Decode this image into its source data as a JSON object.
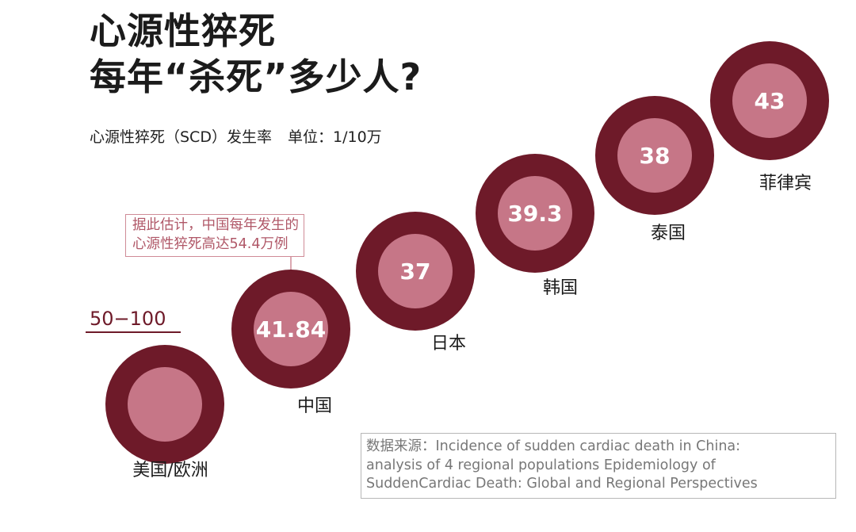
{
  "header": {
    "title_line1": "心源性猝死",
    "title_line2": "每年“杀死”多少人?",
    "subtitle": "心源性猝死（SCD）发生率",
    "unit": "单位：1/10万"
  },
  "callout": {
    "line1": "据此估计，中国每年发生的",
    "line2": "心源性猝死高达54.4万例"
  },
  "source": {
    "line1": "数据来源：Incidence of sudden cardiac death in China:",
    "line2": "analysis of 4 regional populations Epidemiology of",
    "line3": "SuddenCardiac Death: Global and Regional Perspectives"
  },
  "colors": {
    "outer": "#6e1a29",
    "inner": "#c67687",
    "text_light": "#ffffff",
    "range_line": "#6e1a29"
  },
  "chart_data": {
    "type": "bubble",
    "title": "心源性猝死 每年“杀死”多少人?",
    "metric": "心源性猝死（SCD）发生率",
    "unit": "1/10万",
    "points": [
      {
        "label": "美国/欧洲",
        "range": [
          50,
          100
        ],
        "range_label": "50−100",
        "value_label": ""
      },
      {
        "label": "中国",
        "value": 41.84,
        "value_label": "41.84"
      },
      {
        "label": "日本",
        "value": 37,
        "value_label": "37"
      },
      {
        "label": "韩国",
        "value": 39.3,
        "value_label": "39.3"
      },
      {
        "label": "泰国",
        "value": 38,
        "value_label": "38"
      },
      {
        "label": "菲律宾",
        "value": 43,
        "value_label": "43"
      }
    ]
  }
}
